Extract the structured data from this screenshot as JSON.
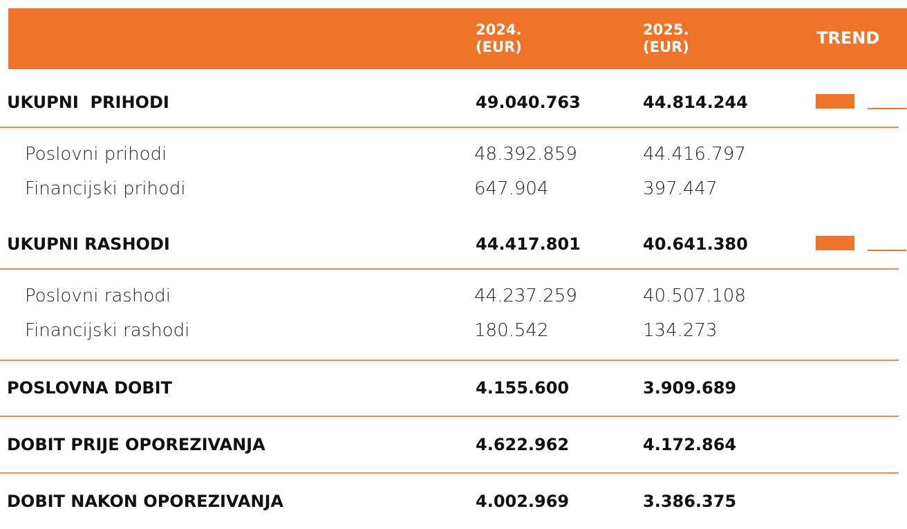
{
  "header": {
    "columns": [
      {
        "year": "2024.",
        "unit": "(EUR)"
      },
      {
        "year": "2025.",
        "unit": "(EUR)"
      },
      {
        "label": "TREND"
      }
    ]
  },
  "sections": [
    {
      "label": "UKUPNI  PRIHODI",
      "values": [
        "49.040.763",
        "44.814.244"
      ],
      "trend": true,
      "items": [
        {
          "label": "Poslovni prihodi",
          "values": [
            "48.392.859",
            "44.416.797"
          ]
        },
        {
          "label": "Financijski prihodi",
          "values": [
            "647.904",
            "397.447"
          ]
        }
      ]
    },
    {
      "label": "UKUPNI RASHODI",
      "values": [
        "44.417.801",
        "40.641.380"
      ],
      "trend": true,
      "items": [
        {
          "label": "Poslovni rashodi",
          "values": [
            "44.237.259",
            "40.507.108"
          ]
        },
        {
          "label": "Financijski rashodi",
          "values": [
            "180.542",
            "134.273"
          ]
        }
      ]
    },
    {
      "label": "POSLOVNA DOBIT",
      "values": [
        "4.155.600",
        "3.909.689"
      ],
      "trend": false,
      "items": []
    },
    {
      "label": "DOBIT PRIJE OPOREZIVANJA",
      "values": [
        "4.622.962",
        "4.172.864"
      ],
      "trend": false,
      "items": []
    },
    {
      "label": "DOBIT NAKON OPOREZIVANJA",
      "values": [
        "4.002.969",
        "3.386.375"
      ],
      "trend": false,
      "items": []
    }
  ]
}
